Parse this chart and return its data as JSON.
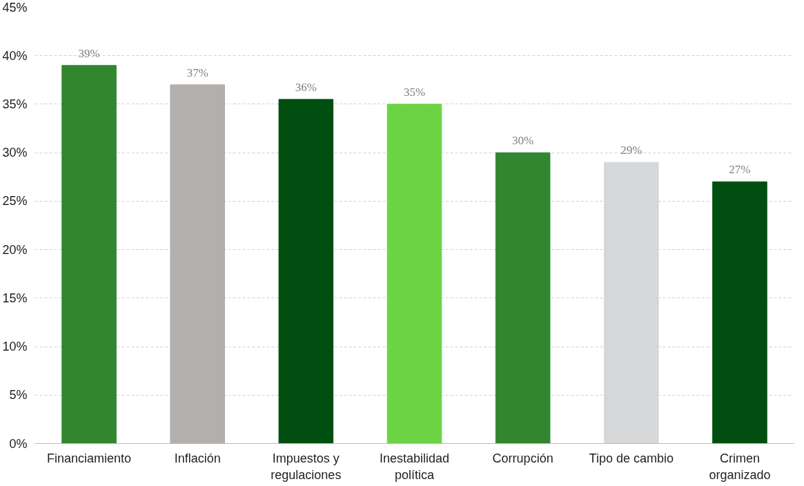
{
  "chart_data": {
    "type": "bar",
    "categories": [
      "Financiamiento",
      "Inflación",
      "Impuestos y regulaciones",
      "Inestabilidad política",
      "Corrupción",
      "Tipo de cambio",
      "Crimen organizado"
    ],
    "values": [
      39,
      37,
      35.5,
      35,
      30,
      29,
      27
    ],
    "colors": [
      "#31862f",
      "#b2afad",
      "#004f10",
      "#6cd444",
      "#31862f",
      "#d6d7d9",
      "#004f10"
    ],
    "value_labels": [
      "39%",
      "37%",
      "36%",
      "35%",
      "30%",
      "29%",
      "27%"
    ],
    "ylim": [
      0,
      45
    ],
    "yticks": [
      {
        "value": 0,
        "label": "0%"
      },
      {
        "value": 5,
        "label": "5%"
      },
      {
        "value": 10,
        "label": "10%"
      },
      {
        "value": 15,
        "label": "15%"
      },
      {
        "value": 20,
        "label": "20%"
      },
      {
        "value": 25,
        "label": "25%"
      },
      {
        "value": 30,
        "label": "30%"
      },
      {
        "value": 35,
        "label": "35%"
      },
      {
        "value": 40,
        "label": "40%"
      },
      {
        "value": 45,
        "label": "45%"
      }
    ],
    "grid": "y"
  }
}
